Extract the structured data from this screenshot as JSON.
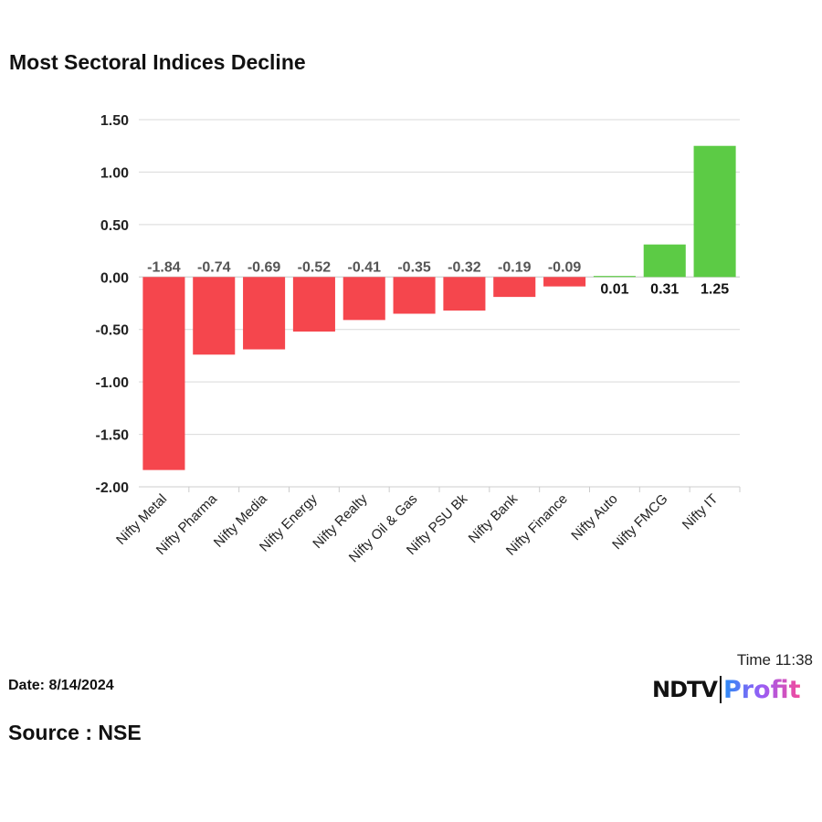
{
  "title": "Most Sectoral Indices Decline",
  "footer": {
    "date": "Date: 8/14/2024",
    "source": "Source : NSE",
    "time": "Time 11:38"
  },
  "logo": {
    "text": "NDTV Profit",
    "part1": "NDTV",
    "part2": "Profit"
  },
  "colors": {
    "negative": "#f5464d",
    "positive": "#5ccb45",
    "grid": "#d9d9d9"
  },
  "chart_data": {
    "type": "bar",
    "title": "Most Sectoral Indices Decline",
    "categories": [
      "Nifty Metal",
      "Nifty Pharma",
      "Nifty Media",
      "Nifty Energy",
      "Nifty Realty",
      "Nifty Oil & Gas",
      "Nifty PSU Bk",
      "Nifty Bank",
      "Nifty Finance",
      "Nifty Auto",
      "Nifty FMCG",
      "Nifty IT"
    ],
    "values": [
      -1.84,
      -0.74,
      -0.69,
      -0.52,
      -0.41,
      -0.35,
      -0.32,
      -0.19,
      -0.09,
      0.01,
      0.31,
      1.25
    ],
    "data_labels": [
      "-1.84",
      "-0.74",
      "-0.69",
      "-0.52",
      "-0.41",
      "-0.35",
      "-0.32",
      "-0.19",
      "-0.09",
      "0.01",
      "0.31",
      "1.25"
    ],
    "yticks": [
      "1.50",
      "1.00",
      "0.50",
      "0.00",
      "-0.50",
      "-1.00",
      "-1.50",
      "-2.00"
    ],
    "ylim": [
      -2.0,
      1.5
    ],
    "xlabel": "",
    "ylabel": "",
    "grid": true,
    "legend": "none"
  }
}
